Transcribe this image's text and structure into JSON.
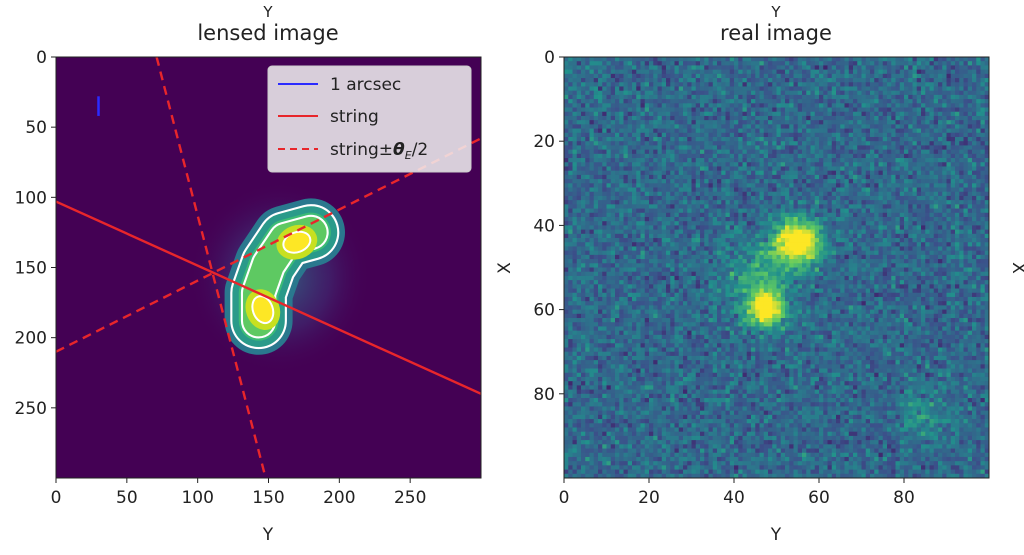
{
  "chart_data": [
    {
      "type": "heatmap",
      "title": "lensed image",
      "top_label": "Y",
      "xlabel": "Y",
      "ylabel": "",
      "xlim": [
        0,
        300
      ],
      "ylim": [
        300,
        0
      ],
      "xticks": [
        0,
        50,
        100,
        150,
        200,
        250
      ],
      "yticks": [
        0,
        50,
        100,
        150,
        200,
        250
      ],
      "colors": {
        "background": "#440154",
        "contour": "#ffffff",
        "scale_bar": "#2b2bff",
        "string": "#e8262b"
      },
      "blobs": [
        {
          "x": 170,
          "y": 132,
          "sigma": 14,
          "amp": 1.0
        },
        {
          "x": 146,
          "y": 180,
          "sigma": 14,
          "amp": 1.0
        },
        {
          "x": 155,
          "y": 157,
          "sigma": 13,
          "amp": 0.55
        }
      ],
      "scale_bar": {
        "x": 30,
        "y1": 28,
        "y2": 42,
        "label": "1 arcsec"
      },
      "string": {
        "name": "string",
        "x": [
          0,
          300
        ],
        "y": [
          103,
          240
        ]
      },
      "string_bounds": {
        "name": "string±θE/2",
        "lines": [
          {
            "x": [
              71,
              148
            ],
            "y": [
              0,
              300
            ]
          },
          {
            "x": [
              0,
              300
            ],
            "y": [
              210,
              58
            ]
          }
        ]
      },
      "legend": {
        "position": "top-right",
        "entries": [
          {
            "label": "1 arcsec",
            "color": "#2b2bff",
            "style": "solid"
          },
          {
            "label": "string",
            "color": "#e8262b",
            "style": "solid"
          },
          {
            "label_main": "string±",
            "label_theta": "θ",
            "label_sub": "E",
            "label_tail": "/2",
            "color": "#e8262b",
            "style": "dashed"
          }
        ]
      }
    },
    {
      "type": "heatmap",
      "title": "real image",
      "top_label": "Y",
      "xlabel": "Y",
      "ylabel": "X",
      "right_label": "X",
      "xlim": [
        0,
        100
      ],
      "ylim": [
        100,
        0
      ],
      "xticks": [
        0,
        20,
        40,
        60,
        80
      ],
      "yticks": [
        0,
        20,
        40,
        60,
        80
      ],
      "colormap": "viridis",
      "blobs": [
        {
          "x": 55,
          "y": 44,
          "sigma": 3.6,
          "amp": 0.9
        },
        {
          "x": 47.5,
          "y": 60,
          "sigma": 3.0,
          "amp": 0.75
        },
        {
          "x": 46,
          "y": 52,
          "sigma": 5.5,
          "amp": 0.25
        },
        {
          "x": 85,
          "y": 85,
          "sigma": 4.0,
          "amp": 0.15
        }
      ]
    }
  ]
}
